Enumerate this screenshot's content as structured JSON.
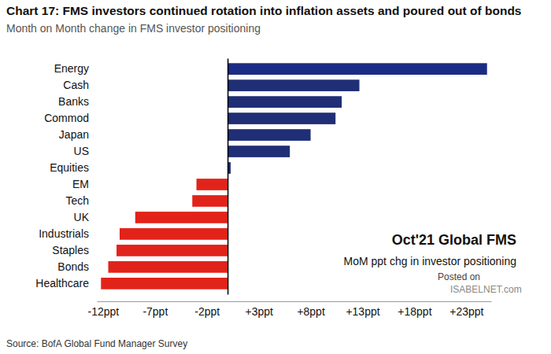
{
  "chart_data": {
    "type": "bar",
    "orientation": "horizontal",
    "title": "Chart 17: FMS investors continued rotation into inflation assets and poured out of bonds",
    "subtitle": "Month on Month change in FMS investor positioning",
    "annotations": [
      "Oct'21 Global FMS",
      "MoM ppt chg in investor positioning",
      "Posted on",
      "ISABELNET.com"
    ],
    "source": "Source: BofA Global Fund Manager Survey",
    "categories": [
      "Energy",
      "Cash",
      "Banks",
      "Commod",
      "Japan",
      "US",
      "Equities",
      "EM",
      "Tech",
      "UK",
      "Industrials",
      "Staples",
      "Bonds",
      "Healthcare"
    ],
    "values": [
      25,
      12.7,
      11,
      10.4,
      8,
      6,
      0.3,
      -3,
      -3.4,
      -8.9,
      -10.4,
      -10.7,
      -11.5,
      -12.2
    ],
    "colors": [
      "#1b2c84",
      "#1f2e75",
      "#1f2e75",
      "#1f2e75",
      "#1f2e75",
      "#1f2e75",
      "#1f2e75",
      "#e2231a",
      "#e2231a",
      "#e2231a",
      "#e2231a",
      "#e2231a",
      "#e2231a",
      "#e2231a"
    ],
    "xlim": [
      -12.6,
      25.4
    ],
    "xticks": [
      {
        "value": -12,
        "label": "-12ppt"
      },
      {
        "value": -7,
        "label": "-7ppt"
      },
      {
        "value": -2,
        "label": "-2ppt"
      },
      {
        "value": 3,
        "label": "+3ppt"
      },
      {
        "value": 8,
        "label": "+8ppt"
      },
      {
        "value": 13,
        "label": "+13ppt"
      },
      {
        "value": 18,
        "label": "+18ppt"
      },
      {
        "value": 23,
        "label": "+23ppt"
      }
    ],
    "grid": false
  }
}
